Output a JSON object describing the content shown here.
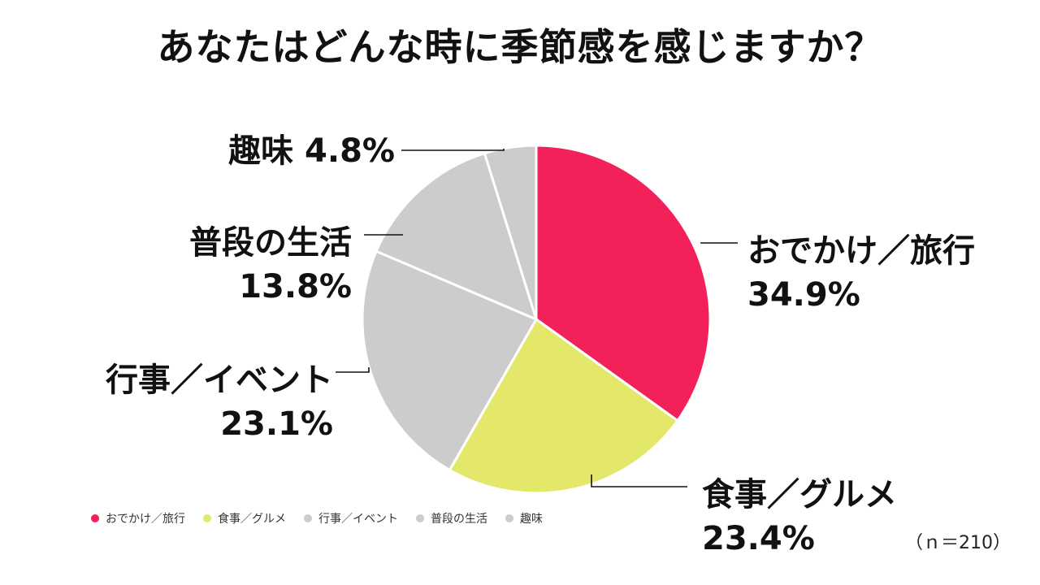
{
  "page": {
    "title": "あなたはどんな時に季節感を感じますか？",
    "sample_note": "（ｎ＝210）"
  },
  "chart_data": {
    "type": "pie",
    "title": "あなたはどんな時に季節感を感じますか？",
    "start_angle_deg": 0,
    "direction": "clockwise",
    "slices": [
      {
        "label": "おでかけ／旅行",
        "value": 34.9,
        "display": "34.9%",
        "color": "#F3215A",
        "callout": "おでかけ／旅行\n34.9%"
      },
      {
        "label": "食事／グルメ",
        "value": 23.4,
        "display": "23.4%",
        "color": "#E3E86A",
        "callout": "食事／グルメ\n23.4%"
      },
      {
        "label": "行事／イベント",
        "value": 23.1,
        "display": "23.1%",
        "color": "#CCCCCC",
        "callout": "行事／イベント\n23.1%"
      },
      {
        "label": "普段の生活",
        "value": 13.8,
        "display": "13.8%",
        "color": "#CCCCCC",
        "callout": "普段の生活\n13.8%"
      },
      {
        "label": "趣味",
        "value": 4.8,
        "display": "4.8%",
        "color": "#CCCCCC",
        "callout": "趣味 4.8%"
      }
    ],
    "legend": {
      "position": "bottom-left",
      "entries": [
        "おでかけ／旅行",
        "食事／グルメ",
        "行事／イベント",
        "普段の生活",
        "趣味"
      ]
    },
    "sample_size": "ｎ＝210"
  }
}
